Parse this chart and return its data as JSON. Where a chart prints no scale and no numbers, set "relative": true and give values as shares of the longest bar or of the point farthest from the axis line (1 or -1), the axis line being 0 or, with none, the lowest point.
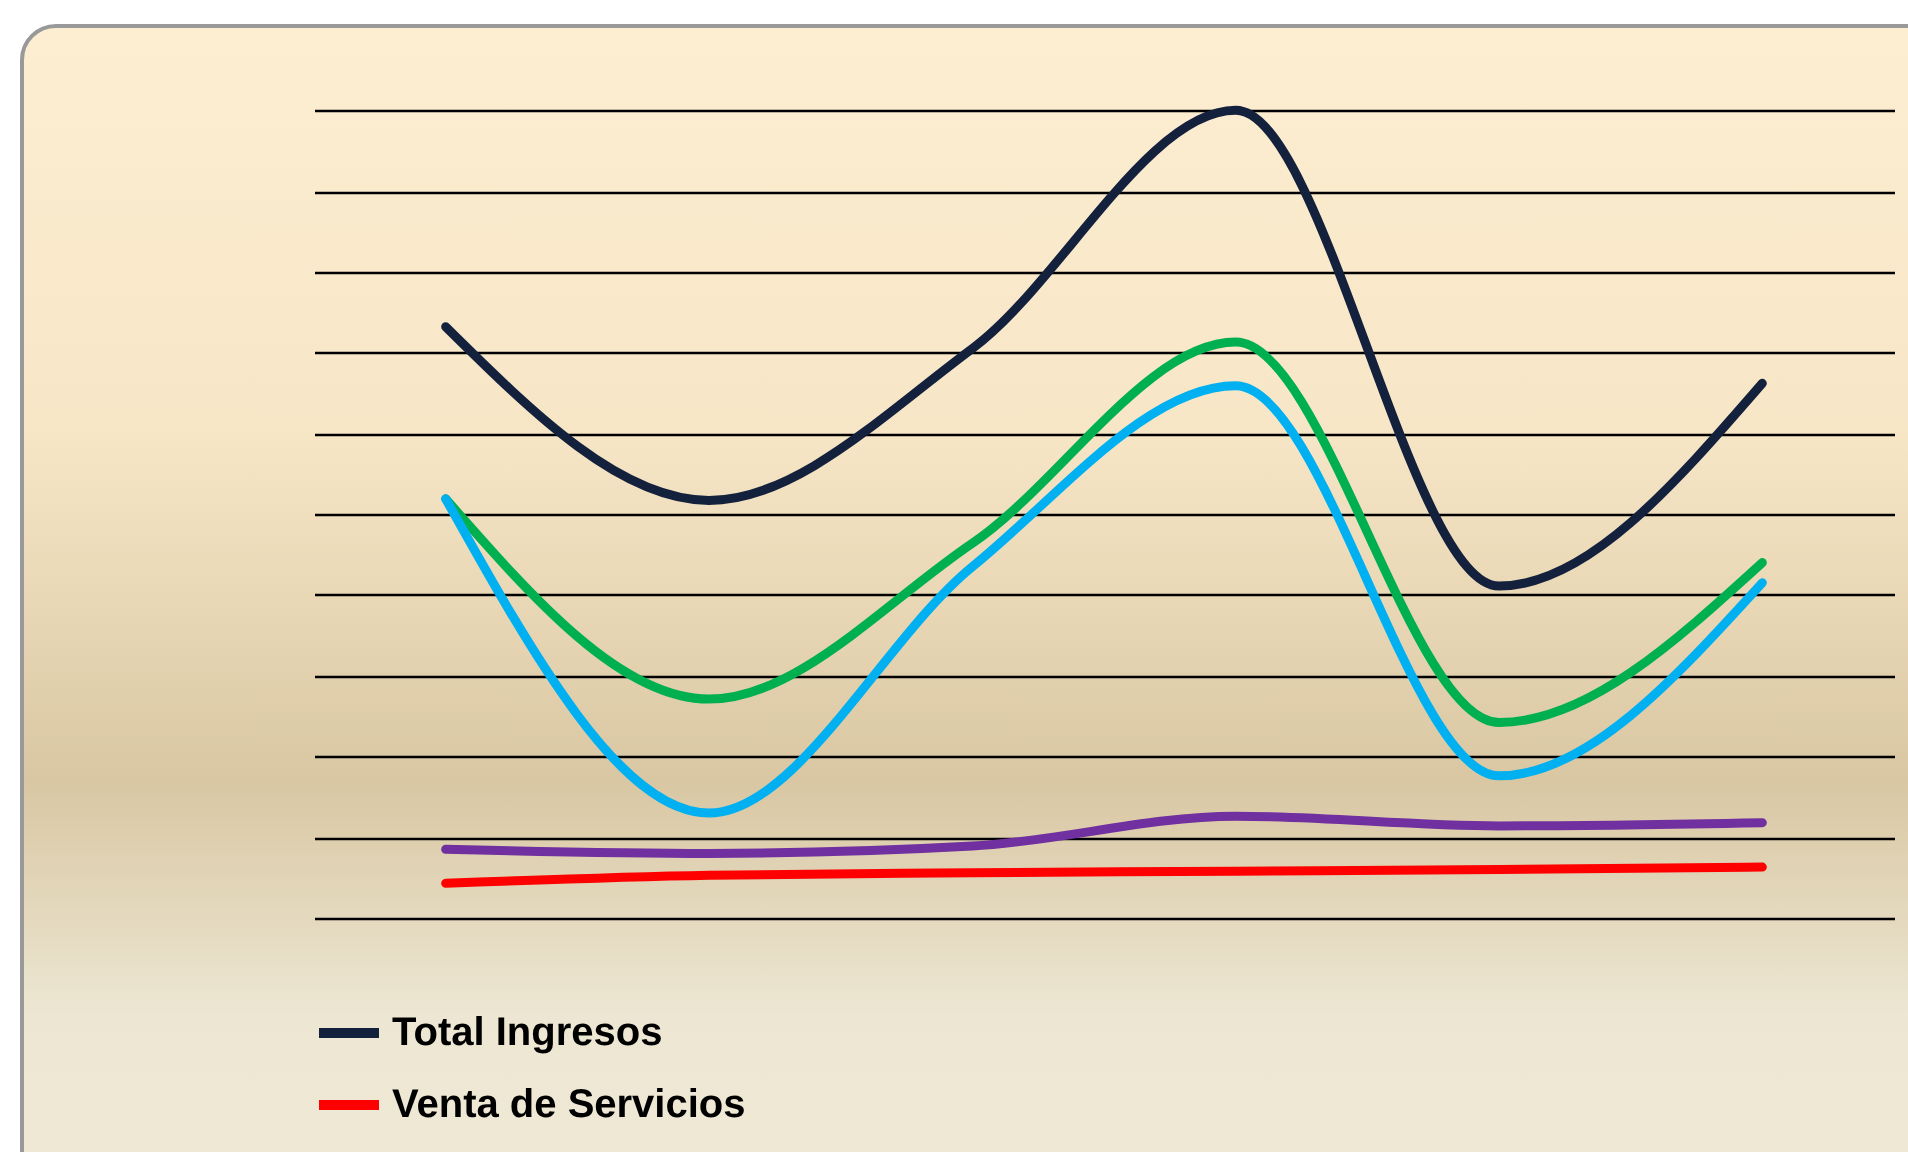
{
  "chart_data": {
    "type": "line",
    "relative": true,
    "categories": [
      null,
      null,
      null,
      null,
      null,
      null
    ],
    "series": [
      {
        "name": "Total Ingresos",
        "color": "#14213d",
        "values": [
          0.732,
          0.517,
          0.705,
          1.0,
          0.411,
          0.662
        ]
      },
      {
        "name": "Venta de Servicios",
        "color": "#ff0000",
        "values": [
          0.043,
          0.053,
          0.056,
          0.058,
          0.06,
          0.063
        ]
      },
      {
        "color": "#00b050",
        "values": [
          0.519,
          0.271,
          0.464,
          0.713,
          0.242,
          0.44
        ]
      },
      {
        "color": "#00b0f0",
        "values": [
          0.519,
          0.13,
          0.435,
          0.659,
          0.176,
          0.415
        ]
      },
      {
        "color": "#7030a0",
        "values": [
          0.085,
          0.08,
          0.089,
          0.126,
          0.114,
          0.118
        ]
      }
    ],
    "grid": "y",
    "legend": "bottom left",
    "marker": "none",
    "line_style": "solid"
  }
}
